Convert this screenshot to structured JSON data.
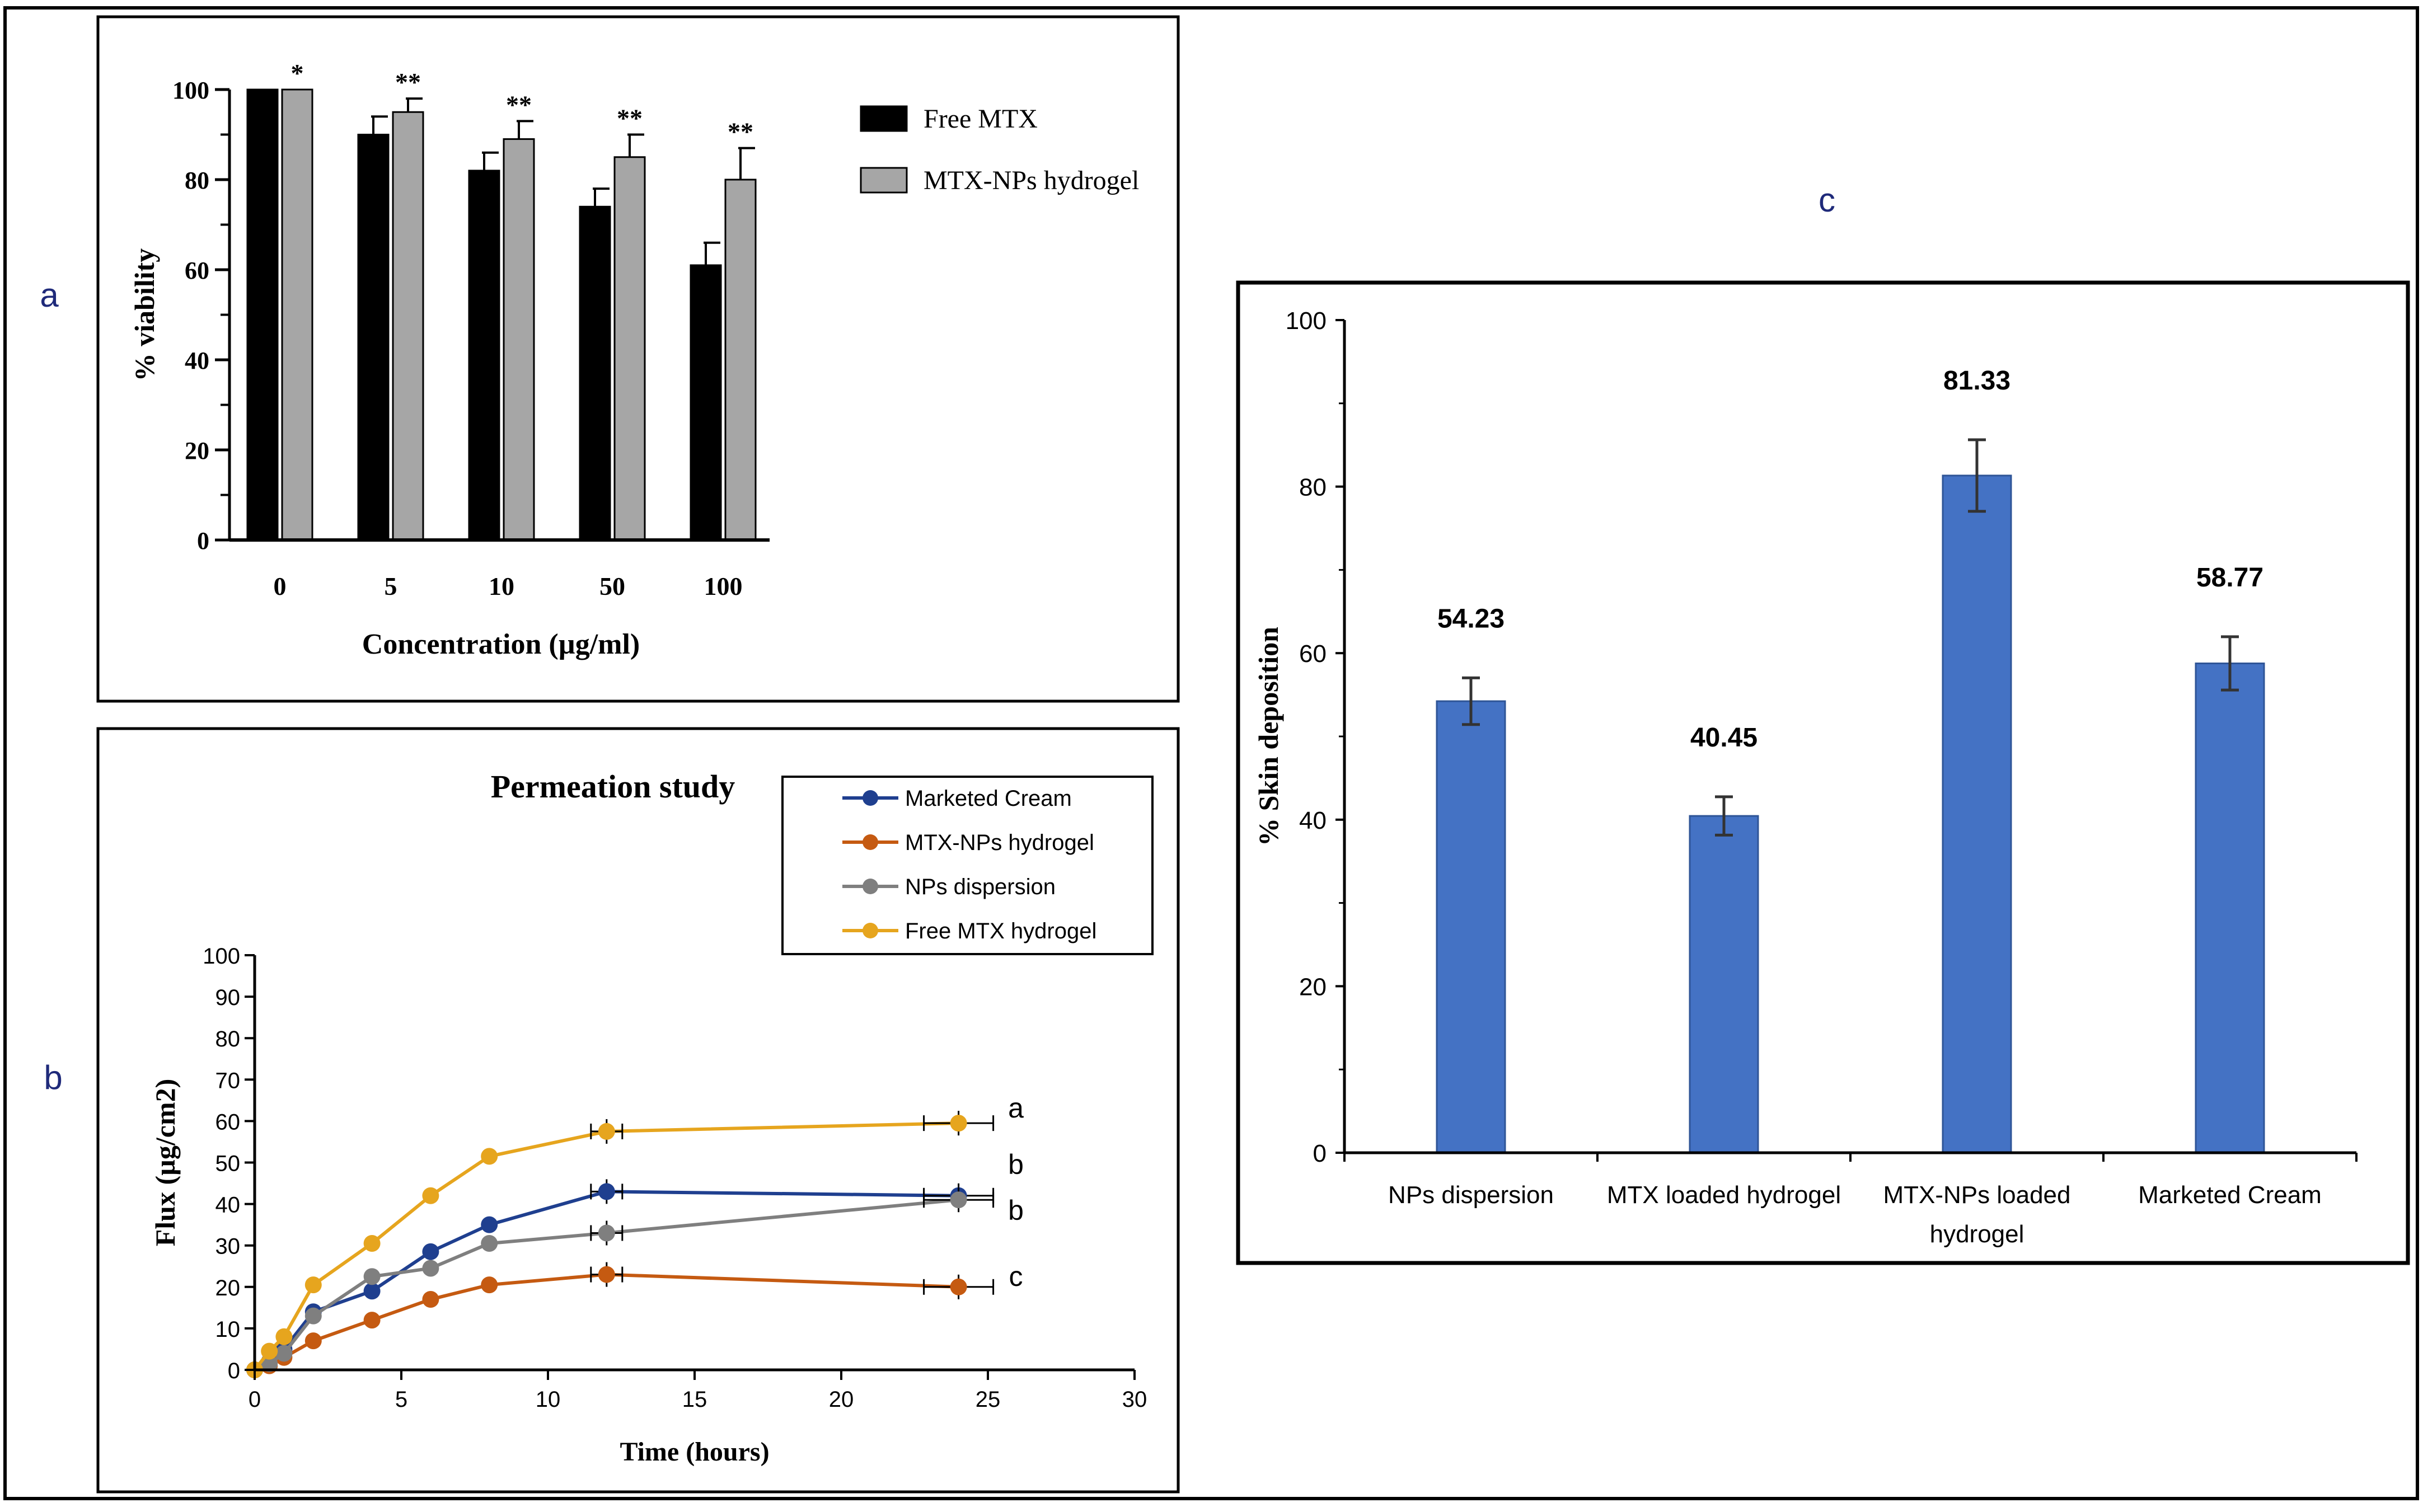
{
  "panel_labels": {
    "a": "a",
    "b": "b",
    "c": "c"
  },
  "colors": {
    "free_mtx_bar": "#000000",
    "mtx_nps_bar": "#a6a6a6",
    "skin_bar": "#4472c4",
    "marketed_cream": "#1f3f8f",
    "mtx_nps_hydrogel": "#c55a11",
    "nps_dispersion": "#7f7f7f",
    "free_mtx_hydrogel": "#e6a51e",
    "panel_label": "#1f2a7a"
  },
  "chart_data": [
    {
      "id": "a",
      "type": "bar",
      "title": "",
      "xlabel": "Concentration (µg/ml)",
      "ylabel": "% viability",
      "ylim": [
        0,
        100
      ],
      "yticks": [
        "0",
        "20",
        "40",
        "60",
        "80",
        "100"
      ],
      "categories": [
        "0",
        "5",
        "10",
        "50",
        "100"
      ],
      "series": [
        {
          "name": "Free MTX",
          "values": [
            100,
            90,
            82,
            74,
            61
          ],
          "errors": [
            0,
            4,
            4,
            4,
            5
          ]
        },
        {
          "name": "MTX-NPs hydrogel",
          "values": [
            100,
            95,
            89,
            85,
            80
          ],
          "errors": [
            0,
            3,
            4,
            5,
            7
          ]
        }
      ],
      "annotations": [
        "*",
        "**",
        "**",
        "**",
        "**"
      ],
      "legend": "top-right"
    },
    {
      "id": "b",
      "type": "line",
      "title": "Permeation study",
      "xlabel": "Time (hours)",
      "ylabel": "Flux (µg/cm2)",
      "xlim": [
        0,
        30
      ],
      "ylim": [
        0,
        100
      ],
      "xticks": [
        "0",
        "5",
        "10",
        "15",
        "20",
        "25",
        "30"
      ],
      "yticks": [
        "0",
        "10",
        "20",
        "30",
        "40",
        "50",
        "60",
        "70",
        "80",
        "90",
        "100"
      ],
      "x": [
        0,
        0.5,
        1,
        2,
        4,
        6,
        8,
        12,
        24
      ],
      "series": [
        {
          "name": "Marketed Cream",
          "values": [
            0,
            2,
            5,
            14,
            19,
            28.5,
            35,
            43,
            42
          ],
          "end_label": "b"
        },
        {
          "name": "MTX-NPs hydrogel",
          "values": [
            0,
            1,
            3,
            7,
            12,
            17,
            20.5,
            23,
            20
          ],
          "end_label": "c"
        },
        {
          "name": "NPs dispersion",
          "values": [
            0,
            1.5,
            4,
            13,
            22.5,
            24.5,
            30.5,
            33,
            41
          ],
          "end_label": "b"
        },
        {
          "name": "Free MTX hydrogel",
          "values": [
            0,
            4.5,
            8,
            20.5,
            30.5,
            42,
            51.5,
            57.5,
            59.5
          ],
          "end_label": "a"
        }
      ],
      "legend": "top-right"
    },
    {
      "id": "c",
      "type": "bar",
      "title": "",
      "xlabel": "",
      "ylabel": "% Skin deposition",
      "ylim": [
        0,
        100
      ],
      "yticks": [
        "0",
        "20",
        "40",
        "60",
        "80",
        "100"
      ],
      "categories": [
        "NPs dispersion",
        "MTX loaded hydrogel",
        "MTX-NPs loaded hydrogel",
        "Marketed Cream"
      ],
      "values": [
        54.23,
        40.45,
        81.33,
        58.77
      ],
      "errors": [
        2.8,
        2.3,
        4.3,
        3.2
      ],
      "data_labels": [
        "54.23",
        "40.45",
        "81.33",
        "58.77"
      ]
    }
  ]
}
